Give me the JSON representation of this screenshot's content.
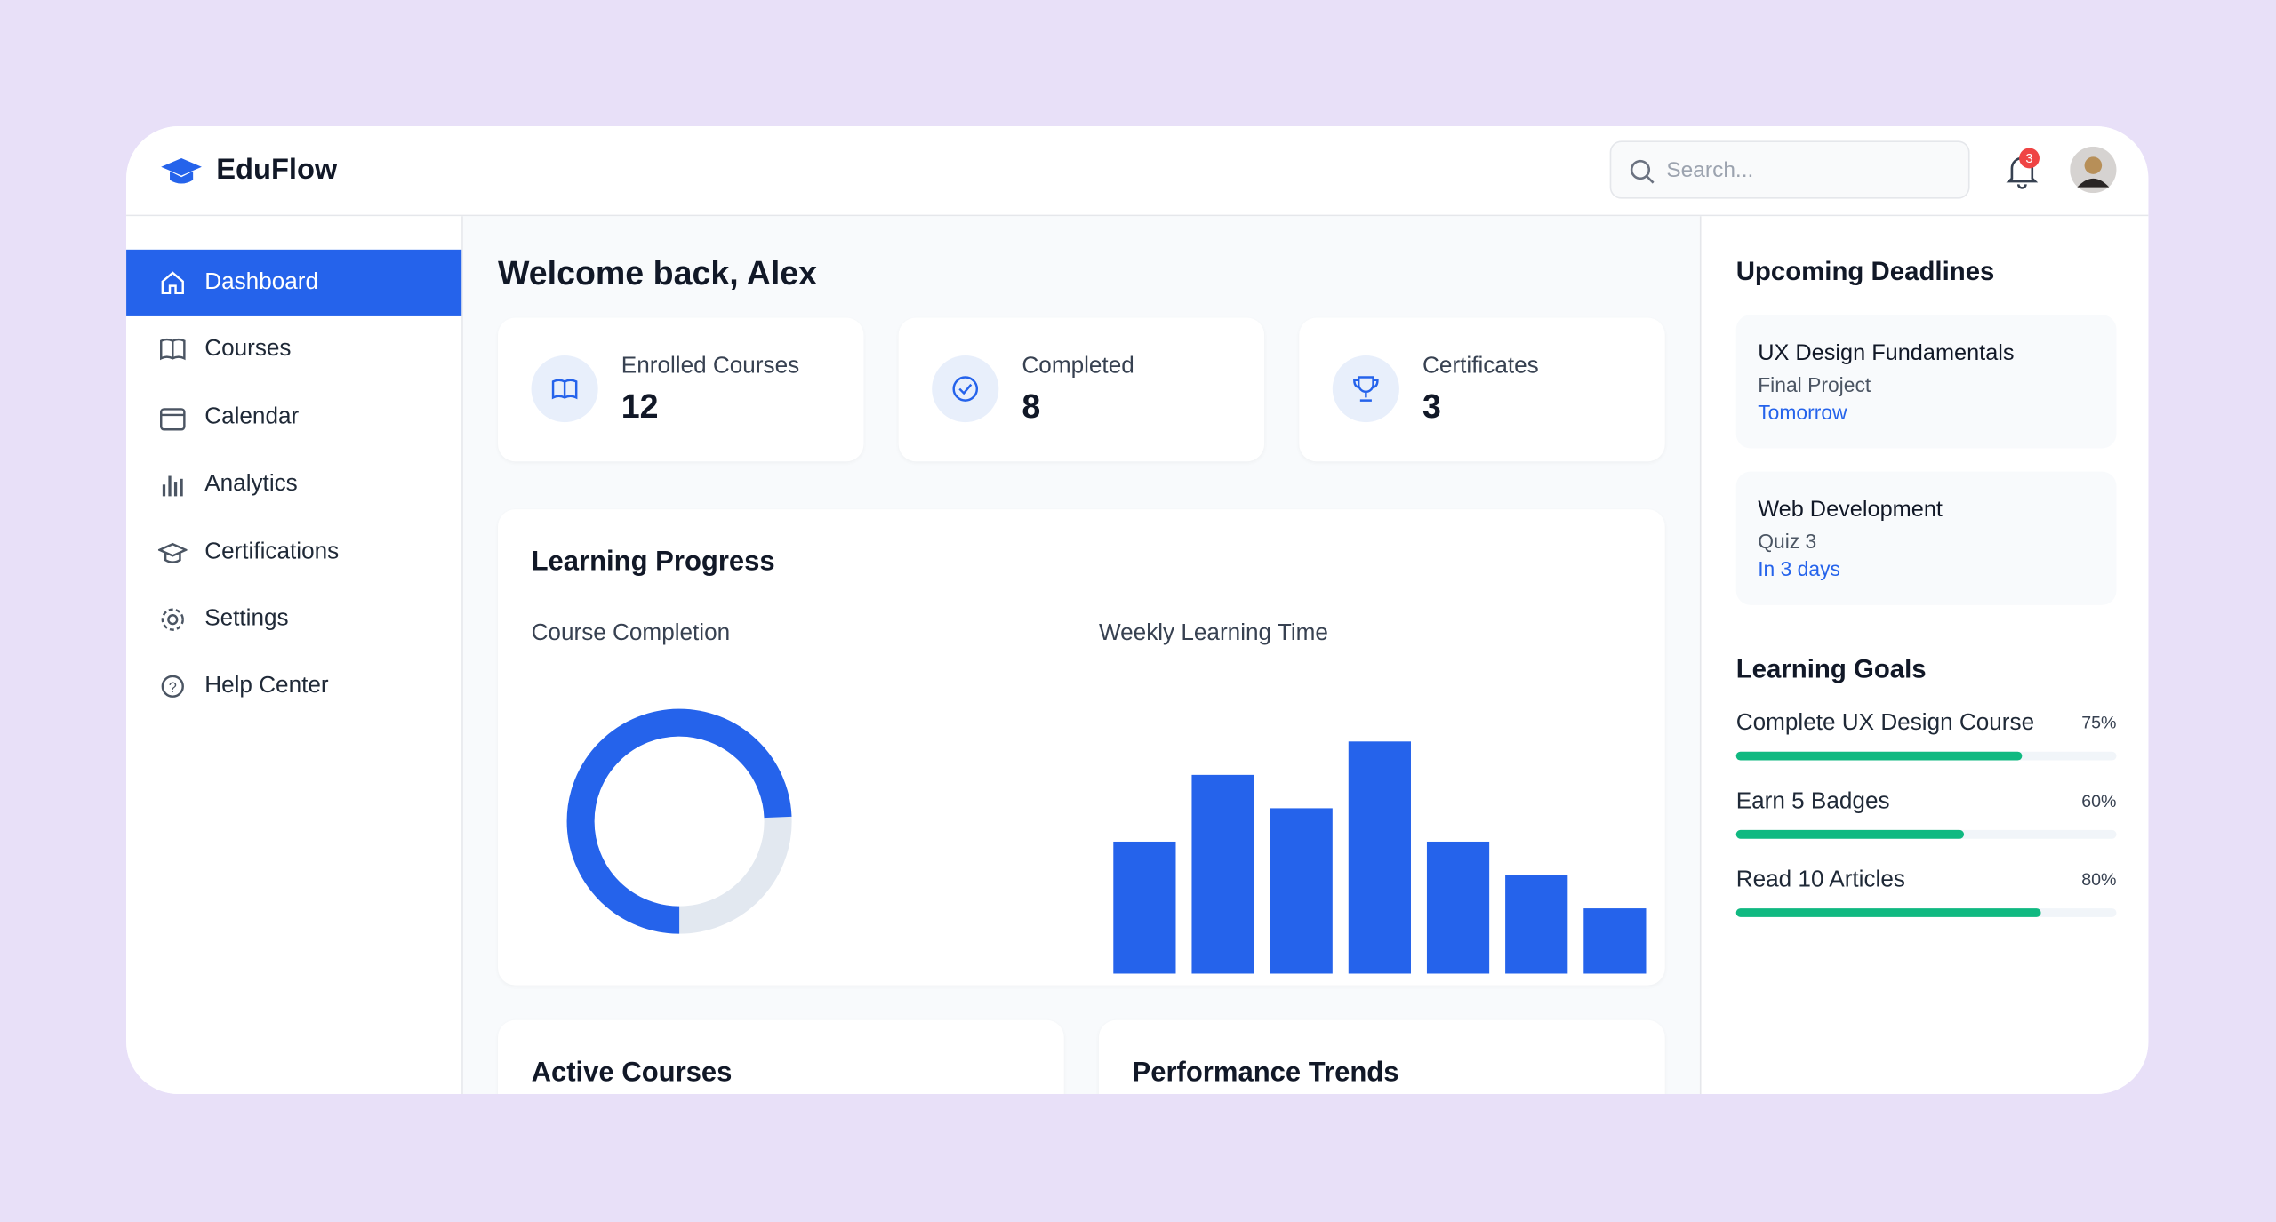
{
  "brand": "EduFlow",
  "search_placeholder": "Search...",
  "notification_count": "3",
  "nav": [
    "Dashboard",
    "Courses",
    "Calendar",
    "Analytics",
    "Certifications",
    "Settings",
    "Help Center"
  ],
  "welcome": "Welcome back, Alex",
  "stats": [
    {
      "label": "Enrolled Courses",
      "value": 12
    },
    {
      "label": "Completed",
      "value": 8
    },
    {
      "label": "Certificates",
      "value": 3
    }
  ],
  "learning_progress": {
    "title": "Learning Progress",
    "course_completion": {
      "title": "Course Completion",
      "value": 75
    },
    "weekly_learning_time": {
      "title": "Weekly Learning Time",
      "values": [
        4,
        6,
        5,
        7,
        4,
        3,
        2
      ]
    }
  },
  "deadlines": {
    "title": "Upcoming Deadlines",
    "items": [
      {
        "course": "UX Design Fundamentals",
        "task": "Final Project",
        "due": "Tomorrow"
      },
      {
        "course": "Web Development",
        "task": "Quiz 3",
        "due": "In 3 days"
      }
    ]
  },
  "goals": {
    "title": "Learning Goals",
    "items": [
      {
        "name": "Complete UX Design Course",
        "value": 75,
        "label": "75%"
      },
      {
        "name": "Earn 5 Badges",
        "value": 60,
        "label": "60%"
      },
      {
        "name": "Read 10 Articles",
        "value": 80,
        "label": "80%"
      }
    ]
  },
  "sections": [
    "Active Courses",
    "Performance Trends"
  ]
}
